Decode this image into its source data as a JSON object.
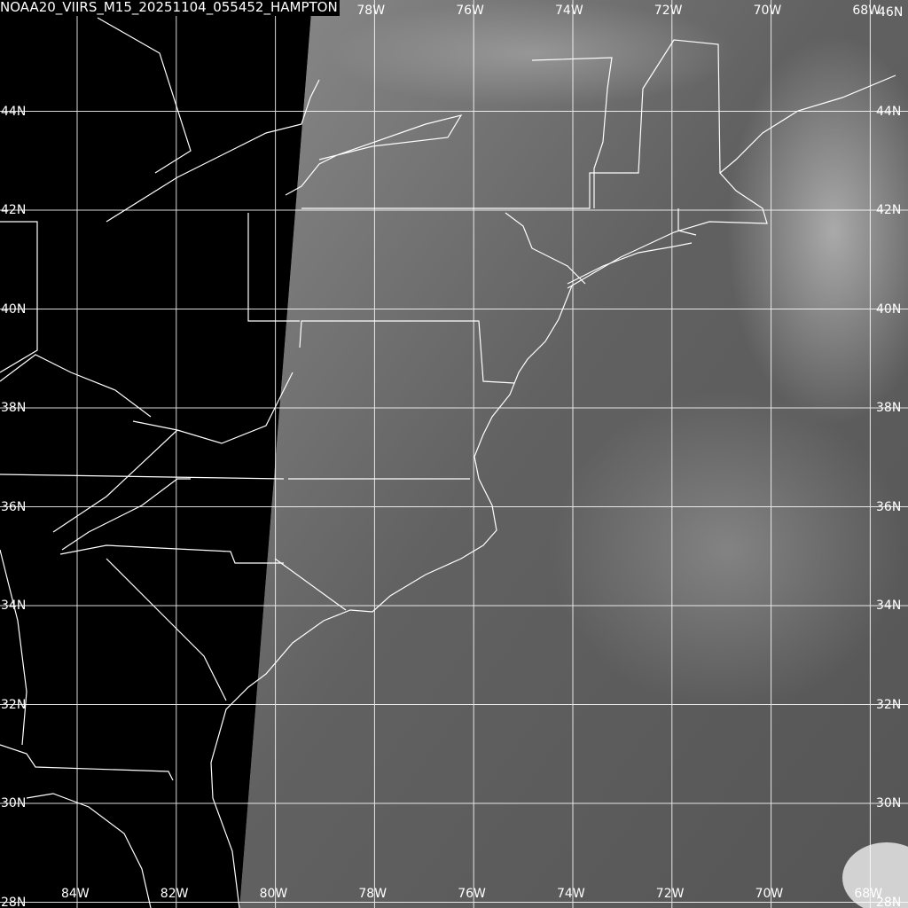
{
  "title": "NOAA20_VIIRS_M15_20251104_055452_HAMPTON",
  "grid": {
    "latitudes": [
      "46N",
      "44N",
      "42N",
      "40N",
      "38N",
      "36N",
      "34N",
      "32N",
      "30N",
      "28N"
    ],
    "longitudes": [
      "84W",
      "82W",
      "80W",
      "78W",
      "76W",
      "74W",
      "72W",
      "70W",
      "68W"
    ],
    "top_longitude_labels": [
      "78W",
      "76W",
      "74W",
      "72W",
      "70W",
      "68W"
    ],
    "line_color": "#ffffff"
  },
  "image": {
    "band": "M15 infrared",
    "no_data_color": "#000000",
    "ocean_tone": "#5a5a5a",
    "land_tone": "#7a7a7a"
  }
}
